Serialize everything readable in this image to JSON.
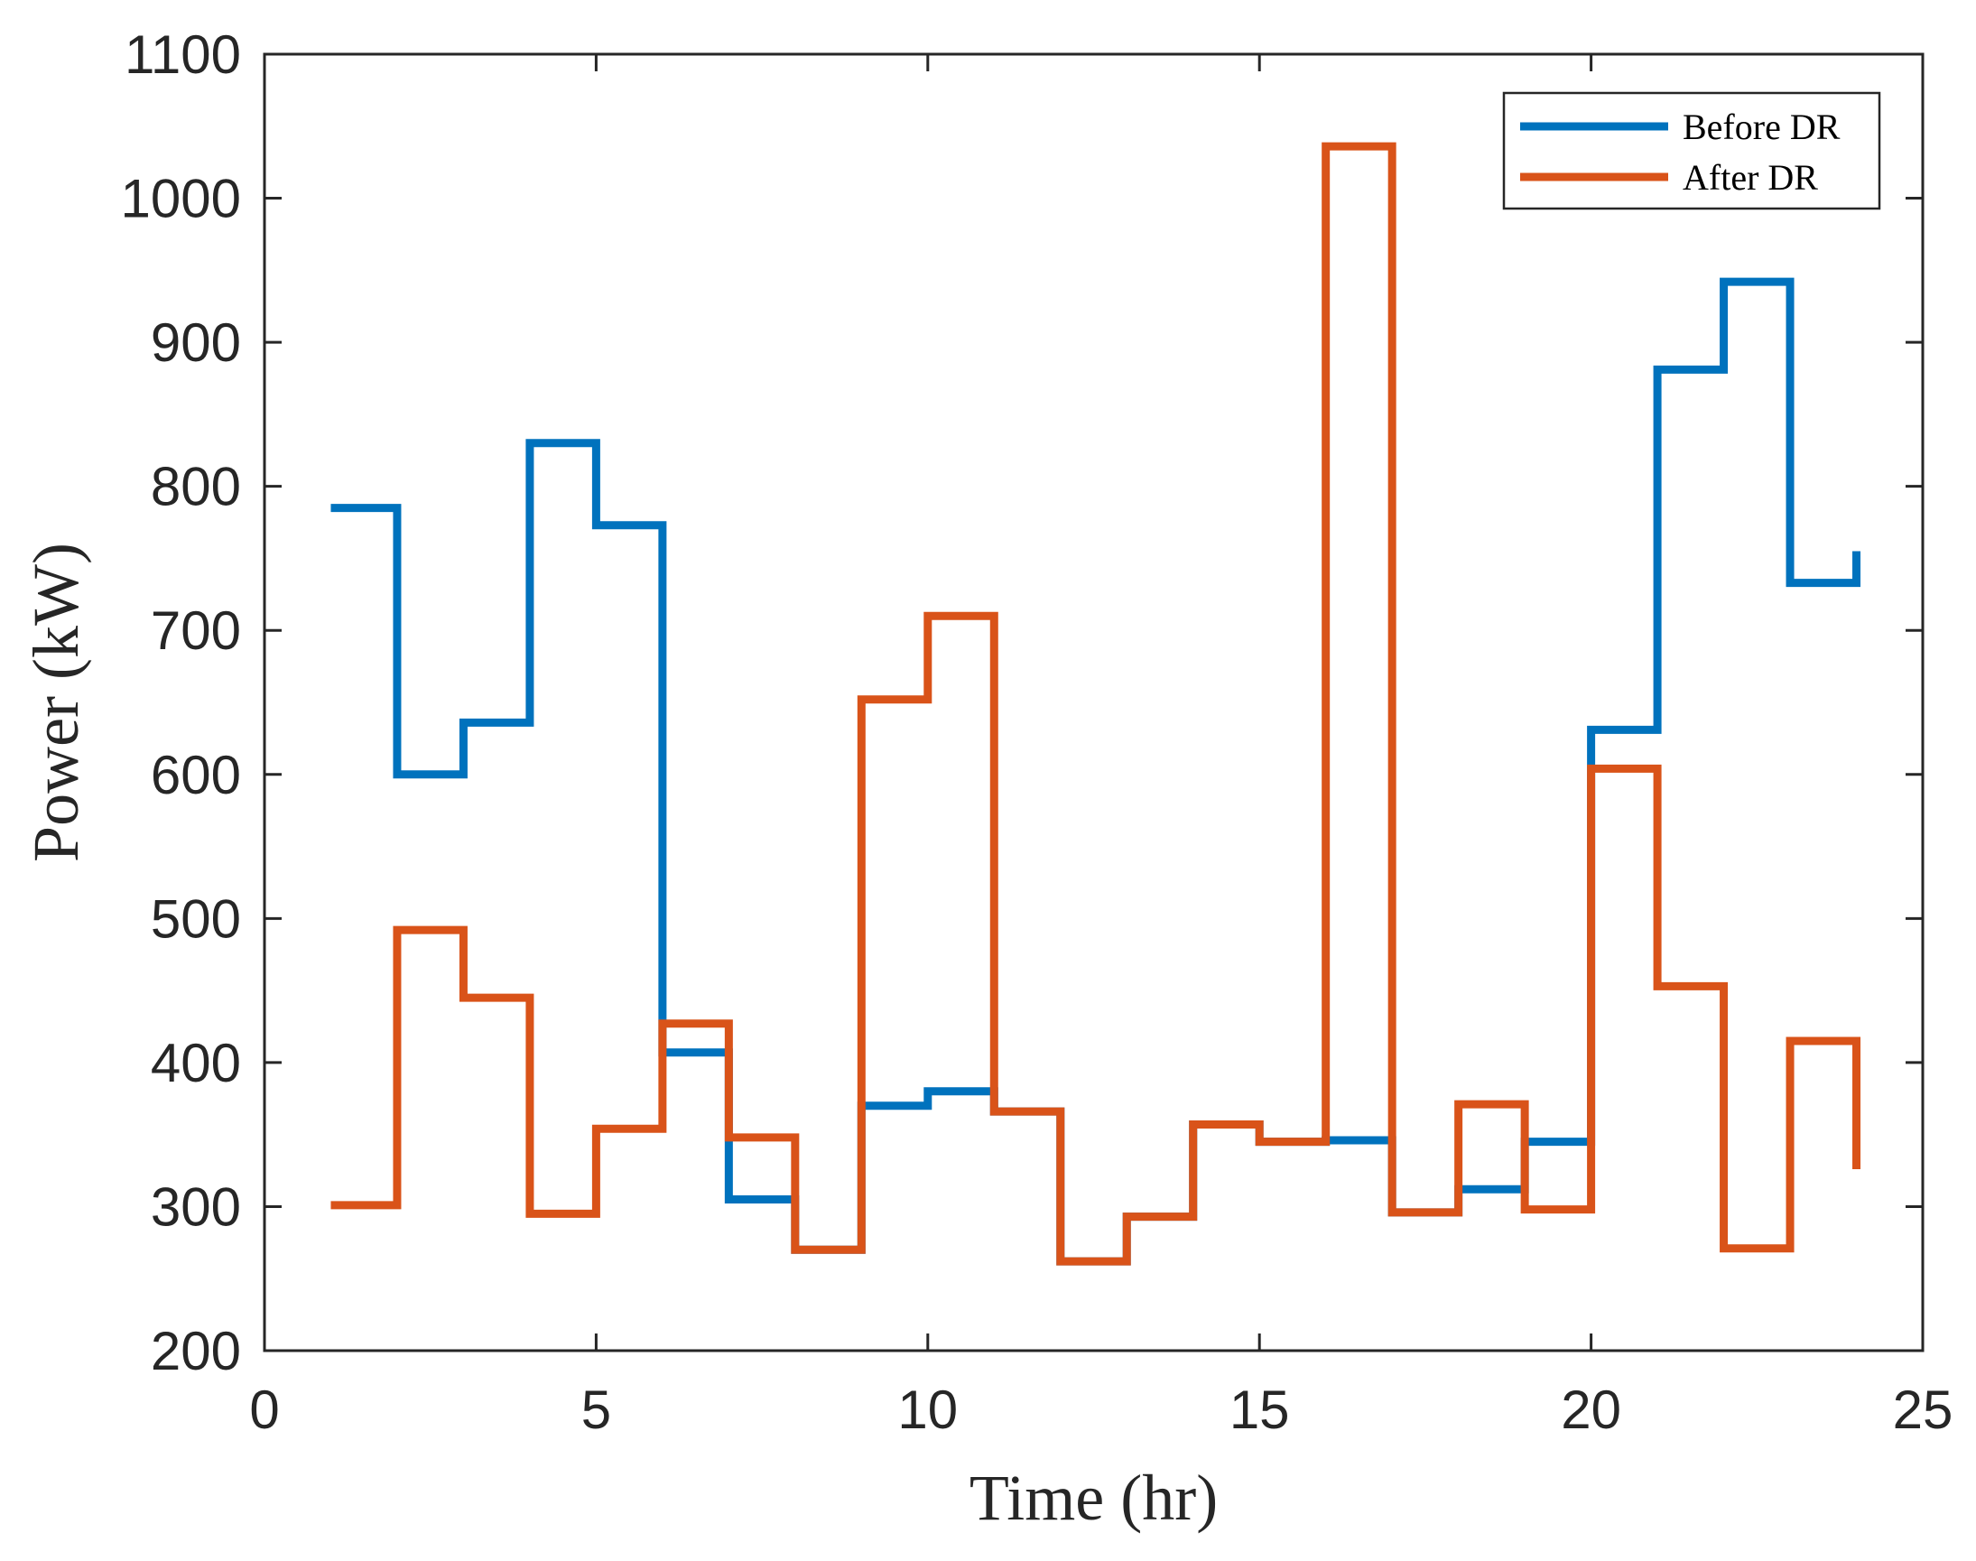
{
  "chart_data": {
    "type": "line",
    "step": true,
    "title": "",
    "xlabel": "Time (hr)",
    "ylabel": "Power (kW)",
    "xlim": [
      0,
      25
    ],
    "ylim": [
      200,
      1100
    ],
    "xticks": [
      0,
      5,
      10,
      15,
      20,
      25
    ],
    "yticks": [
      200,
      300,
      400,
      500,
      600,
      700,
      800,
      900,
      1000,
      1100
    ],
    "legend_position": "top-right",
    "series": [
      {
        "name": "Before DR",
        "color": "#0072BD",
        "x": [
          1,
          2,
          3,
          4,
          5,
          6,
          7,
          8,
          9,
          10,
          11,
          12,
          13,
          14,
          15,
          16,
          17,
          18,
          19,
          20,
          21,
          22,
          23,
          24
        ],
        "values": [
          785,
          600,
          636,
          830,
          773,
          407,
          305,
          270,
          370,
          380,
          366,
          262,
          293,
          357,
          345,
          346,
          296,
          312,
          345,
          631,
          881,
          942,
          733,
          755
        ]
      },
      {
        "name": "After DR",
        "color": "#D95319",
        "x": [
          1,
          2,
          3,
          4,
          5,
          6,
          7,
          8,
          9,
          10,
          11,
          12,
          13,
          14,
          15,
          16,
          17,
          18,
          19,
          20,
          21,
          22,
          23,
          24
        ],
        "values": [
          301,
          492,
          445,
          295,
          354,
          427,
          348,
          270,
          652,
          710,
          366,
          262,
          293,
          357,
          345,
          1036,
          296,
          371,
          298,
          604,
          453,
          271,
          415,
          326
        ]
      }
    ]
  }
}
